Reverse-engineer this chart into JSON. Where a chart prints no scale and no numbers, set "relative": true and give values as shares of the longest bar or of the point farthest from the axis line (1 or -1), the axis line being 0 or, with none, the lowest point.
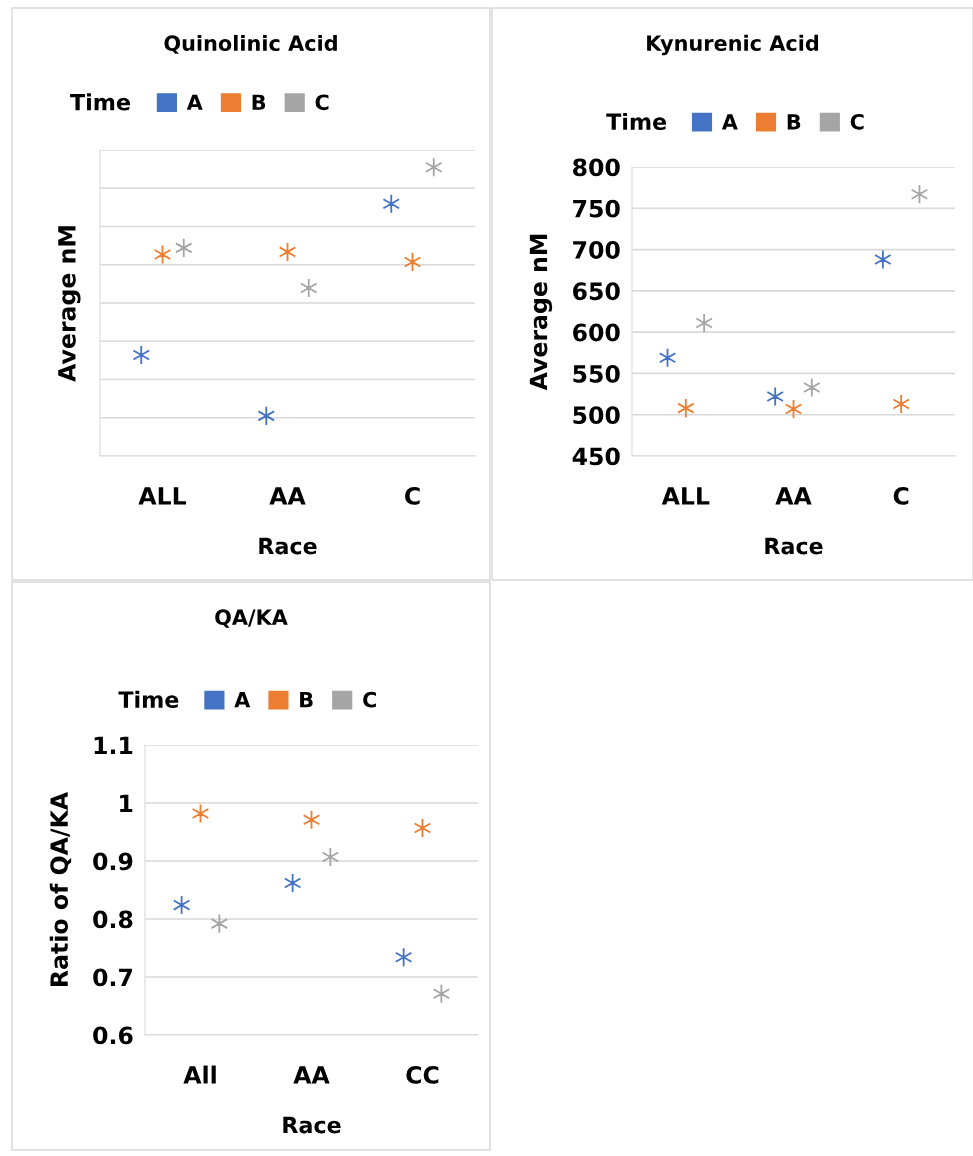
{
  "chart_data": [
    {
      "type": "scatter",
      "title": "Quinolinic Acid",
      "legend_title": "Time",
      "xlabel": "Race",
      "ylabel": "Average nM",
      "relative": true,
      "categories": [
        "ALL",
        "AA",
        "C"
      ],
      "grid": "y",
      "legend": "top",
      "marker": "cross",
      "series": [
        {
          "name": "A",
          "color": "#4472c4",
          "values": [
            0.35,
            0.139,
            0.874
          ]
        },
        {
          "name": "B",
          "color": "#ed7d31",
          "values": [
            0.698,
            0.707,
            0.672
          ]
        },
        {
          "name": "C",
          "color": "#a5a5a5",
          "values": [
            0.721,
            0.582,
            1
          ]
        }
      ]
    },
    {
      "type": "scatter",
      "title": "Kynurenic Acid",
      "legend_title": "Time",
      "xlabel": "Race",
      "ylabel": "Average nM",
      "categories": [
        "ALL",
        "AA",
        "C"
      ],
      "ylim": [
        450,
        800
      ],
      "yticks": [
        450,
        500,
        550,
        600,
        650,
        700,
        750,
        800
      ],
      "grid": "y",
      "legend": "top",
      "marker": "cross",
      "series": [
        {
          "name": "A",
          "color": "#4472c4",
          "values": [
            569,
            522,
            688
          ]
        },
        {
          "name": "B",
          "color": "#ed7d31",
          "values": [
            508,
            507,
            513
          ]
        },
        {
          "name": "C",
          "color": "#a5a5a5",
          "values": [
            611,
            533,
            767
          ]
        }
      ]
    },
    {
      "type": "scatter",
      "title": "QA/KA",
      "legend_title": "Time",
      "xlabel": "Race",
      "ylabel": "Ratio of QA/KA",
      "categories": [
        "All",
        "AA",
        "CC"
      ],
      "ylim": [
        0.6,
        1.1
      ],
      "yticks": [
        0.6,
        0.7,
        0.8,
        0.9,
        1,
        1.1
      ],
      "grid": "y",
      "legend": "top",
      "marker": "cross",
      "series": [
        {
          "name": "A",
          "color": "#4472c4",
          "values": [
            0.824,
            0.862,
            0.734
          ]
        },
        {
          "name": "B",
          "color": "#ed7d31",
          "values": [
            0.982,
            0.971,
            0.957
          ]
        },
        {
          "name": "C",
          "color": "#a5a5a5",
          "values": [
            0.792,
            0.907,
            0.671
          ]
        }
      ]
    }
  ]
}
